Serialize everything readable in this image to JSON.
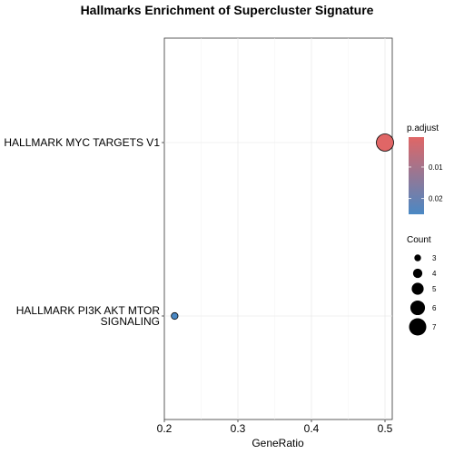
{
  "chart_data": {
    "type": "scatter",
    "title": "Hallmarks Enrichment of Supercluster Signature",
    "xlabel": "GeneRatio",
    "ylabel": "",
    "xlim": [
      0.2,
      0.51
    ],
    "x_ticks": [
      "0.2",
      "0.3",
      "0.4",
      "0.5"
    ],
    "x_tick_values": [
      0.2,
      0.3,
      0.4,
      0.5
    ],
    "categories": [
      "HALLMARK MYC TARGETS V1",
      "HALLMARK PI3K AKT MTOR SIGNALING"
    ],
    "category_lines": [
      [
        "HALLMARK MYC TARGETS V1"
      ],
      [
        "HALLMARK PI3K AKT MTOR",
        "SIGNALING"
      ]
    ],
    "points": [
      {
        "category": "HALLMARK MYC TARGETS V1",
        "x": 0.5,
        "count": 7,
        "p_adjust": 0.0005
      },
      {
        "category": "HALLMARK PI3K AKT MTOR SIGNALING",
        "x": 0.214,
        "count": 3,
        "p_adjust": 0.025
      }
    ],
    "grid": true,
    "color_legend": {
      "title": "p.adjust",
      "labels": [
        "0.01",
        "0.02"
      ],
      "label_values": [
        0.01,
        0.02
      ],
      "range": [
        0.0005,
        0.025
      ],
      "low_color": "#E06666",
      "high_color": "#4A88C4"
    },
    "size_legend": {
      "title": "Count",
      "values": [
        3,
        4,
        5,
        6,
        7
      ],
      "labels": [
        "3",
        "4",
        "5",
        "6",
        "7"
      ]
    },
    "legend_position": "right",
    "point_stroke_color": "#000000"
  }
}
